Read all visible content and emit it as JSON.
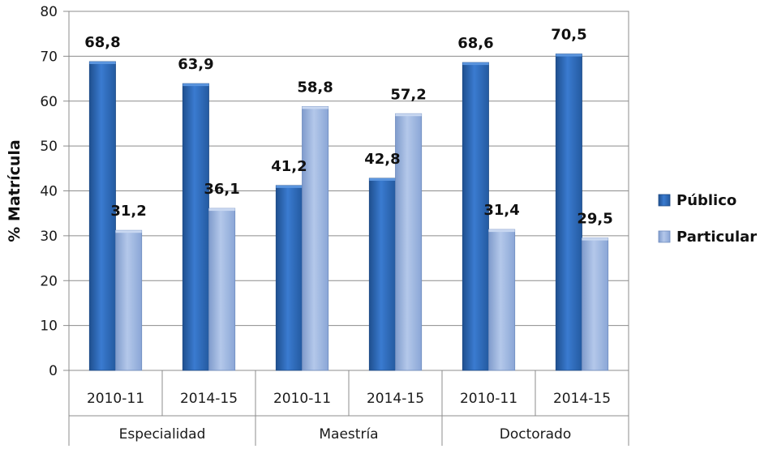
{
  "chart_data": {
    "type": "bar",
    "ylabel": "% Matrícula",
    "ylim": [
      0,
      80
    ],
    "yticks": [
      0,
      10,
      20,
      30,
      40,
      50,
      60,
      70,
      80
    ],
    "groups": [
      {
        "name": "Especialidad",
        "categories": [
          "2010-11",
          "2014-15"
        ]
      },
      {
        "name": "Maestría",
        "categories": [
          "2010-11",
          "2014-15"
        ]
      },
      {
        "name": "Doctorado",
        "categories": [
          "2010-11",
          "2014-15"
        ]
      }
    ],
    "categories": [
      "2010-11",
      "2014-15",
      "2010-11",
      "2014-15",
      "2010-11",
      "2014-15"
    ],
    "series": [
      {
        "name": "Público",
        "color": "#2e6bb5",
        "values": [
          68.8,
          63.9,
          41.2,
          42.8,
          68.6,
          70.5
        ],
        "labels": [
          "68,8",
          "63,9",
          "41,2",
          "42,8",
          "68,6",
          "70,5"
        ]
      },
      {
        "name": "Particular",
        "color": "#93afdc",
        "values": [
          31.2,
          36.1,
          58.8,
          57.2,
          31.4,
          29.5
        ],
        "labels": [
          "31,2",
          "36,1",
          "58,8",
          "57,2",
          "31,4",
          "29,5"
        ]
      }
    ],
    "grid": true,
    "legend": "right"
  }
}
